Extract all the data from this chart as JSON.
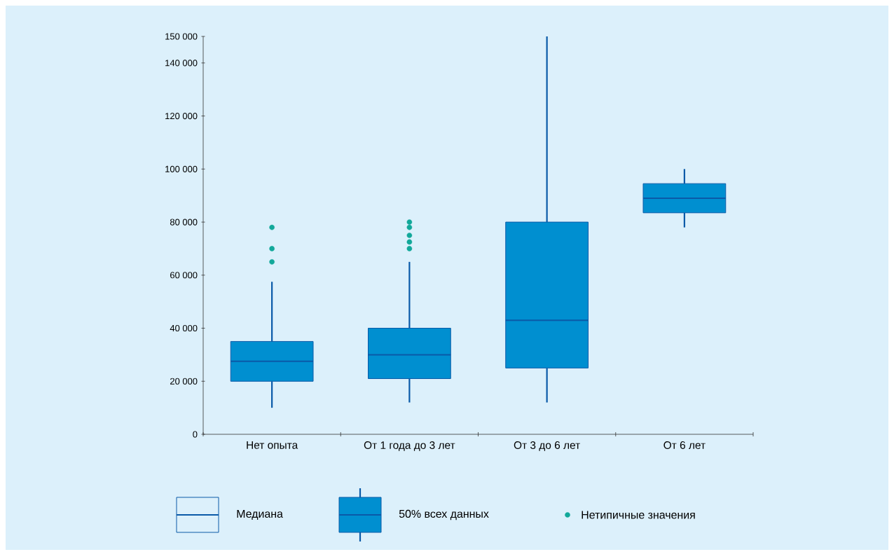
{
  "chart_data": {
    "type": "box",
    "categories": [
      "Нет опыта",
      "От 1 года до 3 лет",
      "От 3 до 6 лет",
      "От 6 лет"
    ],
    "ylim": [
      0,
      150000
    ],
    "yticks": [
      {
        "value": 0,
        "label": "0"
      },
      {
        "value": 20000,
        "label": "20 000"
      },
      {
        "value": 40000,
        "label": "40 000"
      },
      {
        "value": 60000,
        "label": "60 000"
      },
      {
        "value": 80000,
        "label": "80 000"
      },
      {
        "value": 100000,
        "label": "100 000"
      },
      {
        "value": 120000,
        "label": "120 000"
      },
      {
        "value": 140000,
        "label": "140 000"
      },
      {
        "value": 150000,
        "label": "150 000"
      }
    ],
    "series": [
      {
        "type": "box",
        "name": "50% всех данных",
        "color": "#008fd0",
        "boxes": [
          {
            "low": 10000,
            "q1": 20000,
            "median": 27500,
            "q3": 35000,
            "high": 57500
          },
          {
            "low": 12000,
            "q1": 21000,
            "median": 30000,
            "q3": 40000,
            "high": 65000
          },
          {
            "low": 12000,
            "q1": 25000,
            "median": 43000,
            "q3": 80000,
            "high": 150000
          },
          {
            "low": 78000,
            "q1": 83500,
            "median": 89000,
            "q3": 94500,
            "high": 100000
          }
        ]
      },
      {
        "type": "scatter",
        "name": "Нетипичные значения",
        "color": "#12a89a",
        "x": [
          "Нет опыта",
          "Нет опыта",
          "Нет опыта",
          "От 1 года до 3 лет",
          "От 1 года до 3 лет",
          "От 1 года до 3 лет",
          "От 1 года до 3 лет",
          "От 1 года до 3 лет"
        ],
        "values": [
          78000,
          70000,
          65000,
          80000,
          78000,
          75000,
          72500,
          70000
        ]
      }
    ],
    "annotations": [
      "Медиана"
    ],
    "legend": "bottom",
    "marker": "circle",
    "grid": false
  }
}
